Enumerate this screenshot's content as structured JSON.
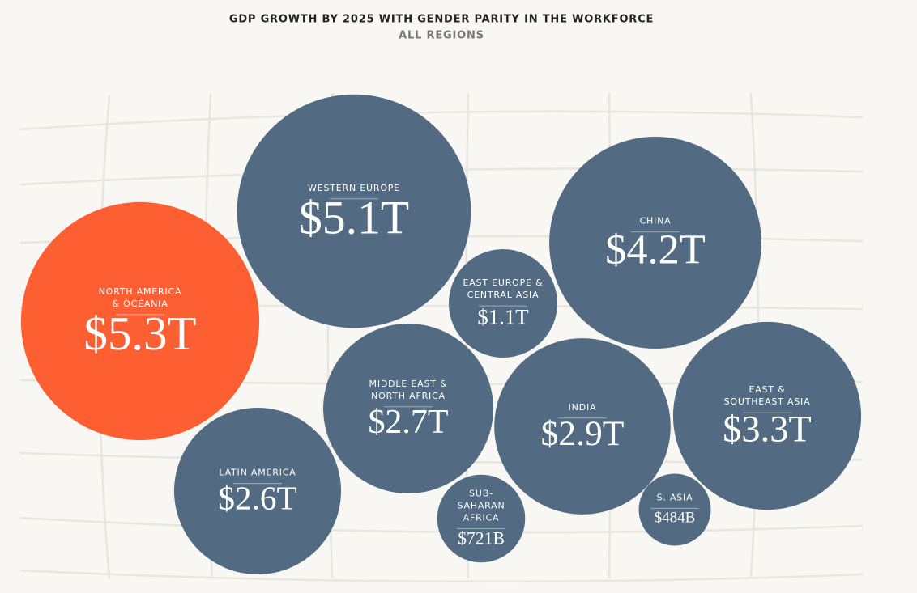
{
  "chart_data": {
    "type": "bubble",
    "title": "GDP GROWTH BY 2025 WITH GENDER PARITY IN THE WORKFORCE",
    "subtitle": "ALL REGIONS",
    "categories": [
      [
        "NORTH AMERICA",
        "& OCEANIA"
      ],
      [
        "WESTERN EUROPE"
      ],
      [
        "CHINA"
      ],
      [
        "EAST EUROPE &",
        "CENTRAL ASIA"
      ],
      [
        "MIDDLE EAST &",
        "NORTH AFRICA"
      ],
      [
        "INDIA"
      ],
      [
        "EAST &",
        "SOUTHEAST ASIA"
      ],
      [
        "LATIN AMERICA"
      ],
      [
        "SUB-",
        "SAHARAN",
        "AFRICA"
      ],
      [
        "S. ASIA"
      ]
    ],
    "values": [
      5.3,
      5.1,
      4.2,
      1.1,
      2.7,
      2.9,
      3.3,
      2.6,
      0.721,
      0.484
    ],
    "value_labels": [
      "$5.3T",
      "$5.1T",
      "$4.2T",
      "$1.1T",
      "$2.7T",
      "$2.9T",
      "$3.3T",
      "$2.6T",
      "$721B",
      "$484B"
    ],
    "colors": [
      "#fd5f33",
      "#526b83",
      "#526b83",
      "#526b83",
      "#526b83",
      "#526b83",
      "#526b83",
      "#526b83",
      "#526b83",
      "#526b83"
    ]
  }
}
